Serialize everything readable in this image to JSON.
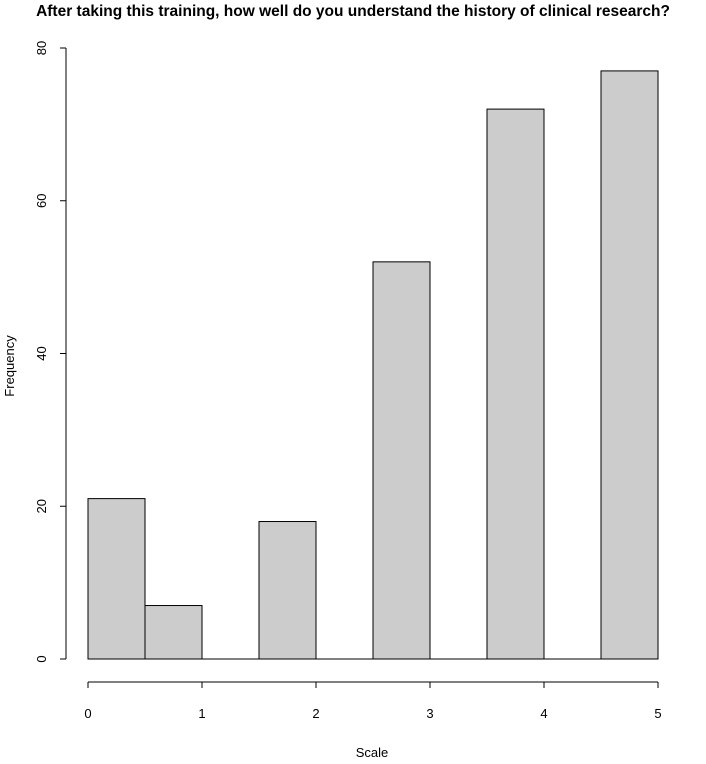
{
  "chart_data": {
    "type": "bar",
    "title": "After taking this training, how well do you understand the history of clinical research?",
    "xlabel": "Scale",
    "ylabel": "Frequency",
    "bin_width": 0.5,
    "bins": [
      {
        "start": 0.0,
        "end": 0.5,
        "value": 21
      },
      {
        "start": 0.5,
        "end": 1.0,
        "value": 7
      },
      {
        "start": 1.0,
        "end": 1.5,
        "value": 0
      },
      {
        "start": 1.5,
        "end": 2.0,
        "value": 18
      },
      {
        "start": 2.0,
        "end": 2.5,
        "value": 0
      },
      {
        "start": 2.5,
        "end": 3.0,
        "value": 52
      },
      {
        "start": 3.0,
        "end": 3.5,
        "value": 0
      },
      {
        "start": 3.5,
        "end": 4.0,
        "value": 72
      },
      {
        "start": 4.0,
        "end": 4.5,
        "value": 0
      },
      {
        "start": 4.5,
        "end": 5.0,
        "value": 77
      }
    ],
    "xlim": [
      0,
      5
    ],
    "ylim": [
      0,
      80
    ],
    "x_ticks": [
      "0",
      "1",
      "2",
      "3",
      "4",
      "5"
    ],
    "y_ticks": [
      "0",
      "20",
      "40",
      "60",
      "80"
    ],
    "bar_color": "#cccccc",
    "grid": false,
    "legend": "none"
  }
}
